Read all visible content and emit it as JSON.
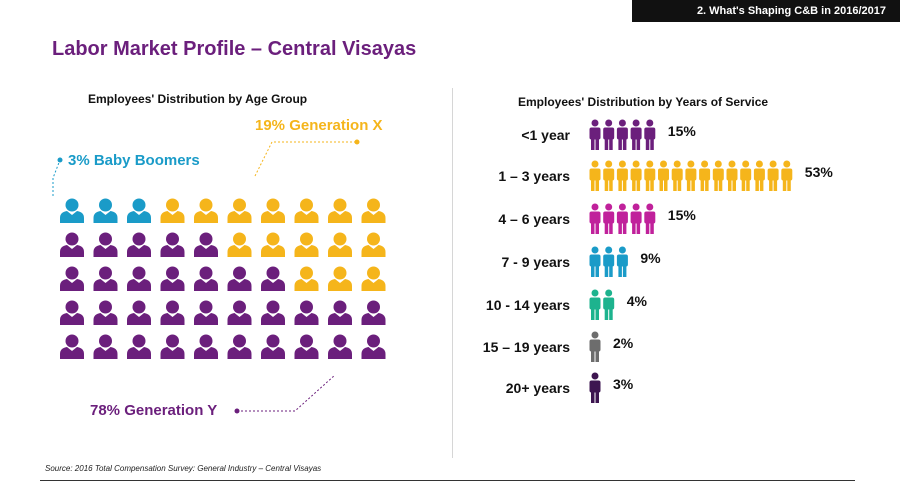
{
  "header": {
    "section": "2. What's Shaping C&B in 2016/2017"
  },
  "page_title": "Labor Market Profile – Central Visayas",
  "source": "Source: 2016 Total Compensation Survey: General Industry – Central Visayas",
  "colors": {
    "purple": "#6b1f7c",
    "yellow": "#f5b51b",
    "blue": "#1a9bc8",
    "magenta": "#c0219b",
    "teal": "#1db38e",
    "gray": "#6d6d6d",
    "dark_purple": "#3d1550"
  },
  "chart_data": [
    {
      "type": "pictogram",
      "title": "Employees' Distribution by Age Group",
      "legend": [
        {
          "name": "19% Generation X",
          "color": "#f5b51b"
        },
        {
          "name": "3% Baby Boomers",
          "color": "#1a9bc8"
        },
        {
          "name": "78% Generation Y",
          "color": "#6b1f7c"
        }
      ],
      "series": [
        {
          "name": "Baby Boomers",
          "value": 3,
          "color": "#1a9bc8"
        },
        {
          "name": "Generation X",
          "value": 19,
          "color": "#f5b51b"
        },
        {
          "name": "Generation Y",
          "value": 78,
          "color": "#6b1f7c"
        }
      ],
      "grid": {
        "cols": 10,
        "rows": [
          [
            "b",
            "b",
            "b",
            "x",
            "x",
            "x",
            "x",
            "x",
            "x",
            "x"
          ],
          [
            "y",
            "y",
            "y",
            "y",
            "y",
            "x",
            "x",
            "x",
            "x",
            "x"
          ],
          [
            "y",
            "y",
            "y",
            "y",
            "y",
            "y",
            "y",
            "x",
            "x",
            "x"
          ],
          [
            "y",
            "y",
            "y",
            "y",
            "y",
            "y",
            "y",
            "y",
            "y",
            "y"
          ],
          [
            "y",
            "y",
            "y",
            "y",
            "y",
            "y",
            "y",
            "y",
            "y",
            "y"
          ]
        ]
      }
    },
    {
      "type": "pictogram-bar",
      "title": "Employees' Distribution by Years of Service",
      "categories": [
        "<1 year",
        "1 – 3 years",
        "4 – 6 years",
        "7 - 9 years",
        "10 - 14 years",
        "15 – 19 years",
        "20+ years"
      ],
      "values": [
        15,
        53,
        15,
        9,
        4,
        2,
        3
      ],
      "labels": [
        "15%",
        "53%",
        "15%",
        "9%",
        "4%",
        "2%",
        "3%"
      ],
      "icon_counts": [
        5,
        15,
        5,
        3,
        2,
        1,
        1
      ],
      "colors": [
        "#6b1f7c",
        "#f5b51b",
        "#c0219b",
        "#1a9bc8",
        "#1db38e",
        "#6d6d6d",
        "#3d1550"
      ]
    }
  ]
}
